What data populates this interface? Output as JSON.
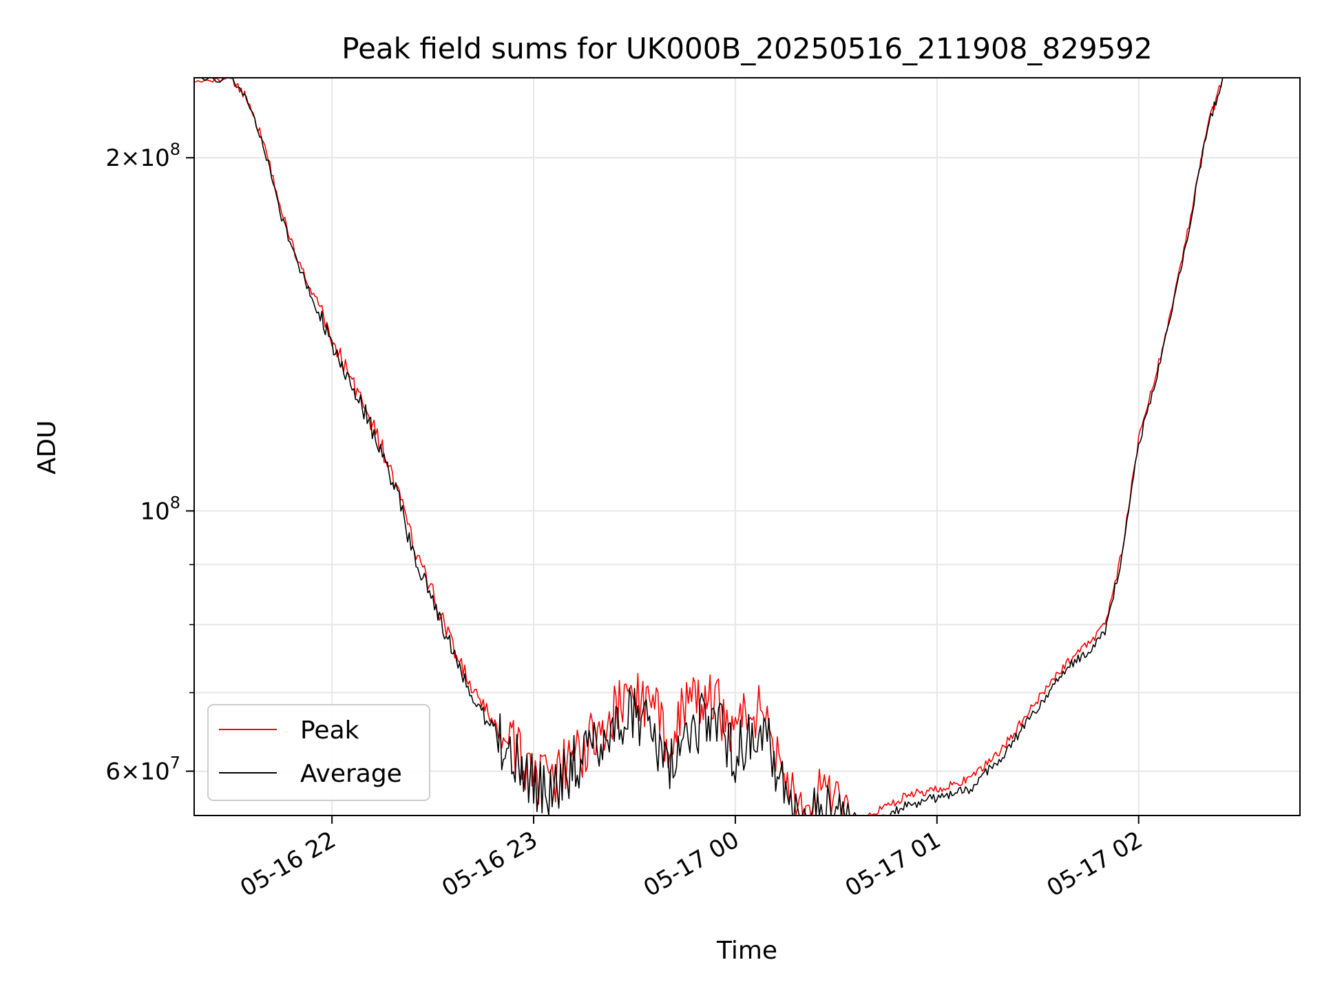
{
  "chart_data": {
    "type": "line",
    "title": "Peak field sums for UK000B_20250516_211908_829592",
    "xlabel": "Time",
    "ylabel": "ADU",
    "xlim": [
      "2025-05-16 21:19",
      "2025-05-17 02:48"
    ],
    "ylim": [
      55000000,
      234000000
    ],
    "yscale": "log",
    "grid": true,
    "legend": "lower-left",
    "x_ticks": [
      {
        "value": "2025-05-16 22:00",
        "label": "05-16 22"
      },
      {
        "value": "2025-05-16 23:00",
        "label": "05-16 23"
      },
      {
        "value": "2025-05-17 00:00",
        "label": "05-17 00"
      },
      {
        "value": "2025-05-17 01:00",
        "label": "05-17 01"
      },
      {
        "value": "2025-05-17 02:00",
        "label": "05-17 02"
      }
    ],
    "y_ticks": [
      {
        "value": 60000000,
        "base": "6",
        "exp": "7"
      },
      {
        "value": 100000000,
        "base": "",
        "exp": "8"
      },
      {
        "value": 200000000,
        "base": "2",
        "exp": "8"
      }
    ],
    "x": [
      "2025-05-16 21:19",
      "2025-05-16 21:30",
      "2025-05-16 21:35",
      "2025-05-16 21:40",
      "2025-05-16 21:45",
      "2025-05-16 21:50",
      "2025-05-16 21:55",
      "2025-05-16 22:00",
      "2025-05-16 22:05",
      "2025-05-16 22:10",
      "2025-05-16 22:15",
      "2025-05-16 22:20",
      "2025-05-16 22:25",
      "2025-05-16 22:30",
      "2025-05-16 22:35",
      "2025-05-16 22:40",
      "2025-05-16 22:45",
      "2025-05-16 22:50",
      "2025-05-16 22:55",
      "2025-05-16 23:00",
      "2025-05-16 23:05",
      "2025-05-16 23:10",
      "2025-05-16 23:15",
      "2025-05-16 23:20",
      "2025-05-16 23:25",
      "2025-05-16 23:30",
      "2025-05-16 23:35",
      "2025-05-16 23:40",
      "2025-05-16 23:45",
      "2025-05-16 23:50",
      "2025-05-16 23:55",
      "2025-05-17 00:00",
      "2025-05-17 00:05",
      "2025-05-17 00:10",
      "2025-05-17 00:15",
      "2025-05-17 00:20",
      "2025-05-17 00:25",
      "2025-05-17 00:30",
      "2025-05-17 00:35",
      "2025-05-17 00:40",
      "2025-05-17 00:45",
      "2025-05-17 00:50",
      "2025-05-17 00:55",
      "2025-05-17 01:00",
      "2025-05-17 01:05",
      "2025-05-17 01:10",
      "2025-05-17 01:15",
      "2025-05-17 01:20",
      "2025-05-17 01:25",
      "2025-05-17 01:30",
      "2025-05-17 01:35",
      "2025-05-17 01:40",
      "2025-05-17 01:45",
      "2025-05-17 01:50",
      "2025-05-17 01:55",
      "2025-05-17 02:00",
      "2025-05-17 02:05",
      "2025-05-17 02:10",
      "2025-05-17 02:15",
      "2025-05-17 02:20",
      "2025-05-17 02:25"
    ],
    "series": [
      {
        "name": "Peak",
        "color": "#ff0000",
        "values": [
          234000000,
          234000000,
          224000000,
          205000000,
          180000000,
          163000000,
          152000000,
          140000000,
          131000000,
          122000000,
          113000000,
          103000000,
          92000000,
          85000000,
          78000000,
          72000000,
          68000000,
          65000000,
          62000000,
          60000000,
          58000000,
          61000000,
          63000000,
          65000000,
          68000000,
          70000000,
          68000000,
          64000000,
          68000000,
          69000000,
          68000000,
          65000000,
          68000000,
          66000000,
          60000000,
          54000000,
          57000000,
          56000000,
          53000000,
          55000000,
          56000000,
          57000000,
          57500000,
          58000000,
          58500000,
          59000000,
          61000000,
          63000000,
          66000000,
          69000000,
          72000000,
          75000000,
          77000000,
          80000000,
          92000000,
          115000000,
          130000000,
          150000000,
          175000000,
          210000000,
          234000000
        ]
      },
      {
        "name": "Average",
        "color": "#000000",
        "values": [
          234000000,
          234000000,
          223000000,
          203000000,
          178000000,
          162000000,
          150000000,
          139000000,
          130000000,
          121000000,
          112000000,
          102000000,
          90000000,
          84000000,
          77000000,
          71000000,
          67000000,
          64000000,
          61000000,
          59000000,
          57000000,
          60000000,
          62000000,
          64000000,
          66000000,
          67000000,
          65000000,
          60000000,
          65000000,
          66000000,
          66000000,
          62000000,
          65000000,
          63000000,
          58000000,
          53000000,
          56000000,
          55000000,
          52500000,
          54000000,
          55000000,
          56000000,
          56500000,
          57000000,
          57500000,
          58000000,
          60000000,
          62000000,
          65000000,
          68000000,
          71000000,
          74000000,
          76000000,
          79000000,
          91000000,
          114000000,
          129000000,
          149000000,
          174000000,
          209000000,
          234000000
        ]
      }
    ]
  }
}
